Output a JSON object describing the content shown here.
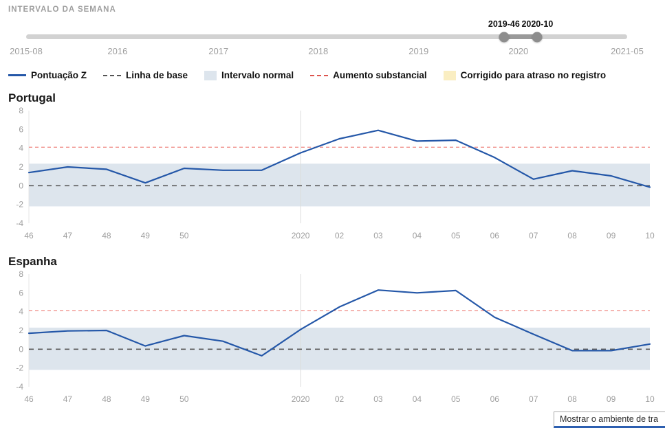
{
  "slider": {
    "title": "INTERVALO DA SEMANA",
    "start_label": "2019-46",
    "end_label": "2020-10",
    "start_pct": 79.5,
    "end_pct": 85.0,
    "axis_labels": [
      {
        "label": "2015-08",
        "pct": 0
      },
      {
        "label": "2016",
        "pct": 15.2
      },
      {
        "label": "2017",
        "pct": 32.0
      },
      {
        "label": "2018",
        "pct": 48.6
      },
      {
        "label": "2019",
        "pct": 65.3
      },
      {
        "label": "2020",
        "pct": 81.9
      },
      {
        "label": "2021-05",
        "pct": 100
      }
    ]
  },
  "legend": {
    "items": [
      {
        "label": "Pontuação Z",
        "swatch": "line",
        "color": "#2457a8"
      },
      {
        "label": "Linha de base",
        "swatch": "dash",
        "color": "#555555"
      },
      {
        "label": "Intervalo normal",
        "swatch": "box",
        "color": "#dde5ed"
      },
      {
        "label": "Aumento substancial",
        "swatch": "dash",
        "color": "#dd544e"
      },
      {
        "label": "Corrigido para atraso no registro",
        "swatch": "box",
        "color": "#faeec2"
      }
    ]
  },
  "colors": {
    "line": "#2457a8",
    "baseline": "#5a5a5a",
    "band": "#dde5ed",
    "threshold": "#f0908a",
    "axis_text": "#9e9e9e",
    "gridline": "#dcdcdc"
  },
  "chart_data": [
    {
      "type": "line",
      "title": "Portugal",
      "series": [
        {
          "name": "Pontuação Z",
          "values": [
            1.4,
            2.0,
            1.75,
            0.3,
            1.85,
            1.65,
            1.65,
            3.5,
            5.0,
            5.9,
            4.75,
            4.85,
            3.0,
            0.7,
            1.6,
            1.05,
            -0.15
          ]
        }
      ],
      "categories": [
        "2019-46",
        "2019-47",
        "2019-48",
        "2019-49",
        "2019-50",
        "2019-51",
        "2019-52",
        "2020-01",
        "2020-02",
        "2020-03",
        "2020-04",
        "2020-05",
        "2020-06",
        "2020-07",
        "2020-08",
        "2020-09",
        "2020-10"
      ],
      "x_tick_labels": [
        "46",
        "47",
        "48",
        "49",
        "50",
        "",
        "",
        "2020",
        "02",
        "03",
        "04",
        "05",
        "06",
        "07",
        "08",
        "09",
        "10"
      ],
      "year_gridline_at": "2020",
      "baseline": 0,
      "threshold": 4.1,
      "normal_range": [
        -2.2,
        2.35
      ],
      "ylim": [
        -4,
        8
      ],
      "yticks": [
        -4,
        -2,
        0,
        2,
        4,
        6,
        8
      ]
    },
    {
      "type": "line",
      "title": "Espanha",
      "series": [
        {
          "name": "Pontuação Z",
          "values": [
            1.7,
            1.95,
            2.0,
            0.35,
            1.45,
            0.85,
            -0.7,
            2.1,
            4.5,
            6.3,
            6.0,
            6.25,
            3.4,
            1.6,
            -0.15,
            -0.15,
            0.55
          ]
        }
      ],
      "categories": [
        "2019-46",
        "2019-47",
        "2019-48",
        "2019-49",
        "2019-50",
        "2019-51",
        "2019-52",
        "2020-01",
        "2020-02",
        "2020-03",
        "2020-04",
        "2020-05",
        "2020-06",
        "2020-07",
        "2020-08",
        "2020-09",
        "2020-10"
      ],
      "x_tick_labels": [
        "46",
        "47",
        "48",
        "49",
        "50",
        "",
        "",
        "2020",
        "02",
        "03",
        "04",
        "05",
        "06",
        "07",
        "08",
        "09",
        "10"
      ],
      "year_gridline_at": "2020",
      "baseline": 0,
      "threshold": 4.1,
      "normal_range": [
        -2.2,
        2.3
      ],
      "ylim": [
        -4,
        8
      ],
      "yticks": [
        -4,
        -2,
        0,
        2,
        4,
        6,
        8
      ]
    }
  ],
  "status_tooltip": {
    "text": "Mostrar o ambiente de tra"
  }
}
